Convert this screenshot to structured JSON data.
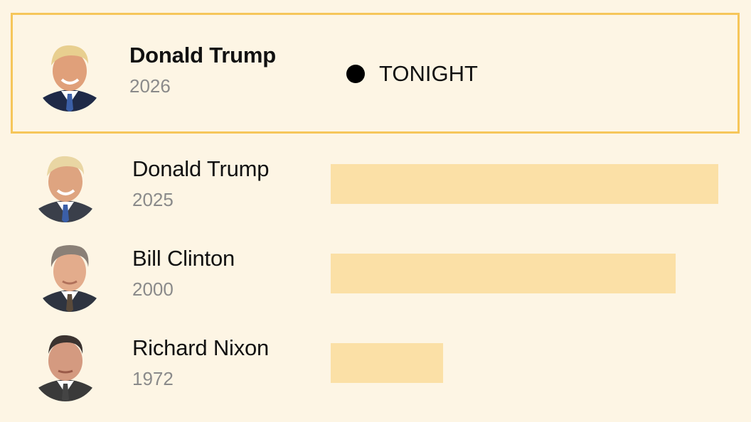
{
  "chart_data": {
    "type": "bar",
    "orientation": "horizontal",
    "highlight": {
      "name": "Donald Trump",
      "year": "2026",
      "status": "TONIGHT"
    },
    "rows": [
      {
        "name": "Donald Trump",
        "year": "2025",
        "value": 100
      },
      {
        "name": "Bill Clinton",
        "year": "2000",
        "value": 89
      },
      {
        "name": "Richard Nixon",
        "year": "1972",
        "value": 29
      }
    ],
    "xlim": [
      0,
      100
    ],
    "grid": false,
    "colors": {
      "bar": "#fbe0a6",
      "highlight_border": "#f6c65a",
      "background": "#fdf5e4"
    }
  }
}
